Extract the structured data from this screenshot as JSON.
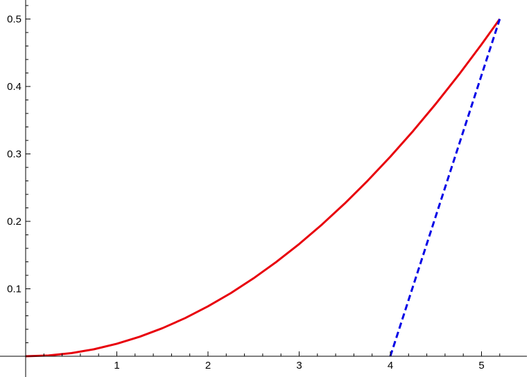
{
  "chart_data": {
    "type": "line",
    "title": "",
    "xlabel": "",
    "ylabel": "",
    "xlim": [
      0,
      5.3
    ],
    "ylim": [
      -0.02,
      0.52
    ],
    "x_ticks": [
      {
        "value": 1,
        "label": "1"
      },
      {
        "value": 2,
        "label": "2"
      },
      {
        "value": 3,
        "label": "3"
      },
      {
        "value": 4,
        "label": "4"
      },
      {
        "value": 5,
        "label": "5"
      }
    ],
    "y_ticks": [
      {
        "value": 0.1,
        "label": "0.1"
      },
      {
        "value": 0.2,
        "label": "0.2"
      },
      {
        "value": 0.3,
        "label": "0.3"
      },
      {
        "value": 0.4,
        "label": "0.4"
      },
      {
        "value": 0.5,
        "label": "0.5"
      }
    ],
    "grid": false,
    "series": [
      {
        "color": "#e8000b",
        "style": "solid",
        "x": [
          0,
          0.25,
          0.5,
          0.75,
          1.0,
          1.25,
          1.5,
          1.75,
          2.0,
          2.25,
          2.5,
          2.75,
          3.0,
          3.25,
          3.5,
          3.75,
          4.0,
          4.25,
          4.5,
          4.75,
          5.0,
          5.2
        ],
        "y": [
          0,
          0.0012,
          0.0046,
          0.0104,
          0.0185,
          0.0289,
          0.0416,
          0.0566,
          0.074,
          0.0936,
          0.1156,
          0.1399,
          0.1664,
          0.1953,
          0.2265,
          0.2601,
          0.2959,
          0.334,
          0.3745,
          0.4172,
          0.4623,
          0.5
        ]
      },
      {
        "color": "#0000e6",
        "style": "dashed",
        "x": [
          4.0,
          5.2
        ],
        "y": [
          0,
          0.5
        ]
      }
    ]
  }
}
